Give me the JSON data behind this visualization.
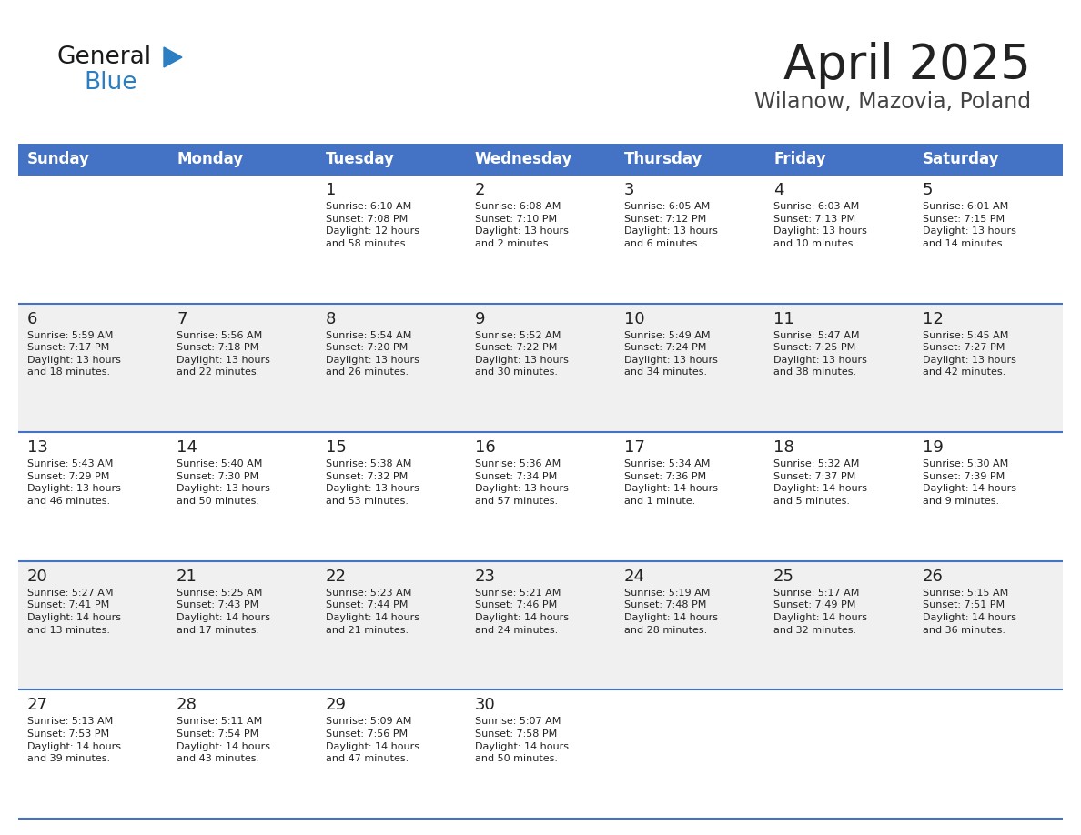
{
  "title": "April 2025",
  "subtitle": "Wilanow, Mazovia, Poland",
  "day_names": [
    "Sunday",
    "Monday",
    "Tuesday",
    "Wednesday",
    "Thursday",
    "Friday",
    "Saturday"
  ],
  "weeks": [
    [
      {
        "day": null,
        "sunrise": null,
        "sunset": null,
        "daylight": null
      },
      {
        "day": null,
        "sunrise": null,
        "sunset": null,
        "daylight": null
      },
      {
        "day": 1,
        "sunrise": "6:10 AM",
        "sunset": "7:08 PM",
        "daylight": "12 hours\nand 58 minutes."
      },
      {
        "day": 2,
        "sunrise": "6:08 AM",
        "sunset": "7:10 PM",
        "daylight": "13 hours\nand 2 minutes."
      },
      {
        "day": 3,
        "sunrise": "6:05 AM",
        "sunset": "7:12 PM",
        "daylight": "13 hours\nand 6 minutes."
      },
      {
        "day": 4,
        "sunrise": "6:03 AM",
        "sunset": "7:13 PM",
        "daylight": "13 hours\nand 10 minutes."
      },
      {
        "day": 5,
        "sunrise": "6:01 AM",
        "sunset": "7:15 PM",
        "daylight": "13 hours\nand 14 minutes."
      }
    ],
    [
      {
        "day": 6,
        "sunrise": "5:59 AM",
        "sunset": "7:17 PM",
        "daylight": "13 hours\nand 18 minutes."
      },
      {
        "day": 7,
        "sunrise": "5:56 AM",
        "sunset": "7:18 PM",
        "daylight": "13 hours\nand 22 minutes."
      },
      {
        "day": 8,
        "sunrise": "5:54 AM",
        "sunset": "7:20 PM",
        "daylight": "13 hours\nand 26 minutes."
      },
      {
        "day": 9,
        "sunrise": "5:52 AM",
        "sunset": "7:22 PM",
        "daylight": "13 hours\nand 30 minutes."
      },
      {
        "day": 10,
        "sunrise": "5:49 AM",
        "sunset": "7:24 PM",
        "daylight": "13 hours\nand 34 minutes."
      },
      {
        "day": 11,
        "sunrise": "5:47 AM",
        "sunset": "7:25 PM",
        "daylight": "13 hours\nand 38 minutes."
      },
      {
        "day": 12,
        "sunrise": "5:45 AM",
        "sunset": "7:27 PM",
        "daylight": "13 hours\nand 42 minutes."
      }
    ],
    [
      {
        "day": 13,
        "sunrise": "5:43 AM",
        "sunset": "7:29 PM",
        "daylight": "13 hours\nand 46 minutes."
      },
      {
        "day": 14,
        "sunrise": "5:40 AM",
        "sunset": "7:30 PM",
        "daylight": "13 hours\nand 50 minutes."
      },
      {
        "day": 15,
        "sunrise": "5:38 AM",
        "sunset": "7:32 PM",
        "daylight": "13 hours\nand 53 minutes."
      },
      {
        "day": 16,
        "sunrise": "5:36 AM",
        "sunset": "7:34 PM",
        "daylight": "13 hours\nand 57 minutes."
      },
      {
        "day": 17,
        "sunrise": "5:34 AM",
        "sunset": "7:36 PM",
        "daylight": "14 hours\nand 1 minute."
      },
      {
        "day": 18,
        "sunrise": "5:32 AM",
        "sunset": "7:37 PM",
        "daylight": "14 hours\nand 5 minutes."
      },
      {
        "day": 19,
        "sunrise": "5:30 AM",
        "sunset": "7:39 PM",
        "daylight": "14 hours\nand 9 minutes."
      }
    ],
    [
      {
        "day": 20,
        "sunrise": "5:27 AM",
        "sunset": "7:41 PM",
        "daylight": "14 hours\nand 13 minutes."
      },
      {
        "day": 21,
        "sunrise": "5:25 AM",
        "sunset": "7:43 PM",
        "daylight": "14 hours\nand 17 minutes."
      },
      {
        "day": 22,
        "sunrise": "5:23 AM",
        "sunset": "7:44 PM",
        "daylight": "14 hours\nand 21 minutes."
      },
      {
        "day": 23,
        "sunrise": "5:21 AM",
        "sunset": "7:46 PM",
        "daylight": "14 hours\nand 24 minutes."
      },
      {
        "day": 24,
        "sunrise": "5:19 AM",
        "sunset": "7:48 PM",
        "daylight": "14 hours\nand 28 minutes."
      },
      {
        "day": 25,
        "sunrise": "5:17 AM",
        "sunset": "7:49 PM",
        "daylight": "14 hours\nand 32 minutes."
      },
      {
        "day": 26,
        "sunrise": "5:15 AM",
        "sunset": "7:51 PM",
        "daylight": "14 hours\nand 36 minutes."
      }
    ],
    [
      {
        "day": 27,
        "sunrise": "5:13 AM",
        "sunset": "7:53 PM",
        "daylight": "14 hours\nand 39 minutes."
      },
      {
        "day": 28,
        "sunrise": "5:11 AM",
        "sunset": "7:54 PM",
        "daylight": "14 hours\nand 43 minutes."
      },
      {
        "day": 29,
        "sunrise": "5:09 AM",
        "sunset": "7:56 PM",
        "daylight": "14 hours\nand 47 minutes."
      },
      {
        "day": 30,
        "sunrise": "5:07 AM",
        "sunset": "7:58 PM",
        "daylight": "14 hours\nand 50 minutes."
      },
      {
        "day": null,
        "sunrise": null,
        "sunset": null,
        "daylight": null
      },
      {
        "day": null,
        "sunrise": null,
        "sunset": null,
        "daylight": null
      },
      {
        "day": null,
        "sunrise": null,
        "sunset": null,
        "daylight": null
      }
    ]
  ],
  "bg_color_white": "#FFFFFF",
  "bg_color_gray": "#F0F0F0",
  "text_color": "#222222",
  "header_bg": "#4472C4",
  "header_fg": "#FFFFFF",
  "sep_color": "#4472C4",
  "logo_black": "#1a1a1a",
  "logo_blue": "#2B7EC1",
  "title_color": "#222222",
  "subtitle_color": "#444444",
  "title_fontsize": 38,
  "subtitle_fontsize": 17,
  "day_number_fontsize": 13,
  "cell_text_fontsize": 8.0,
  "header_fontsize": 12
}
